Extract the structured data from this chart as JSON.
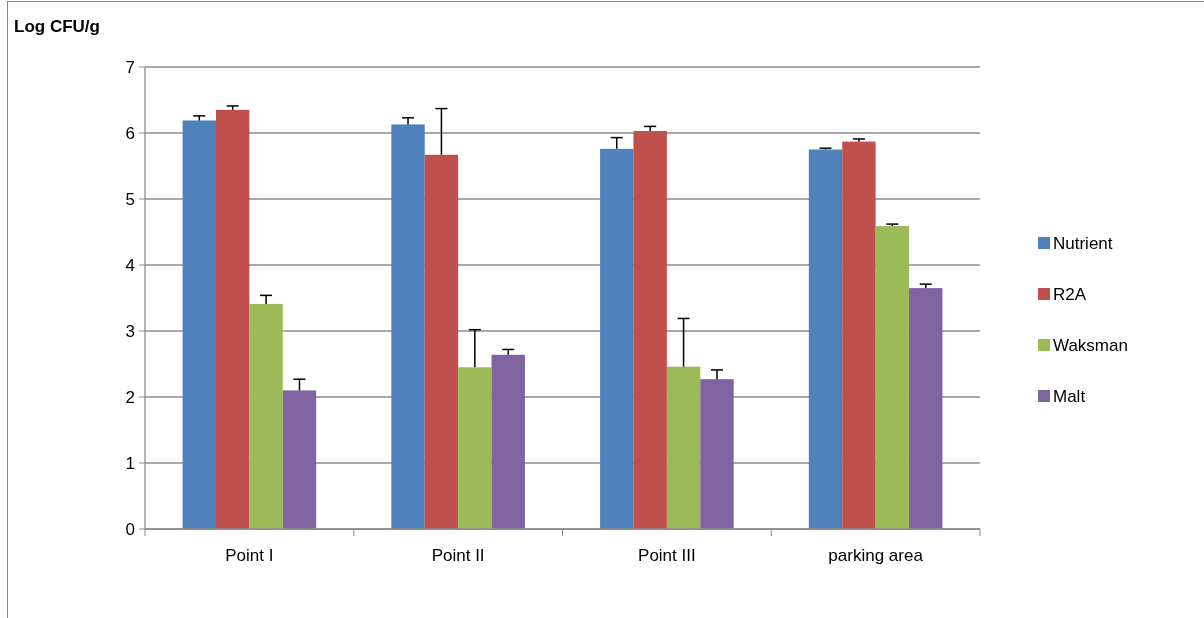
{
  "chart_data": {
    "type": "bar",
    "ylabel": "Log CFU/g",
    "categories": [
      "Point I",
      "Point II",
      "Point III",
      "parking area"
    ],
    "series": [
      {
        "name": "Nutrient",
        "color": "#4f81bd",
        "values": [
          6.19,
          6.13,
          5.76,
          5.75
        ],
        "errors": [
          [
            6.19,
            6.26
          ],
          [
            6.13,
            6.23
          ],
          [
            5.76,
            5.93
          ],
          [
            5.75,
            5.77
          ]
        ]
      },
      {
        "name": "R2A",
        "color": "#c0504d",
        "values": [
          6.35,
          5.67,
          6.03,
          5.87
        ],
        "errors": [
          [
            6.35,
            6.41
          ],
          [
            5.67,
            6.37
          ],
          [
            6.03,
            6.1
          ],
          [
            5.87,
            5.91
          ]
        ]
      },
      {
        "name": "Waksman",
        "color": "#9bbb59",
        "values": [
          3.41,
          2.45,
          2.46,
          4.59
        ],
        "errors": [
          [
            3.41,
            3.54
          ],
          [
            2.45,
            3.02
          ],
          [
            2.46,
            3.19
          ],
          [
            4.59,
            4.62
          ]
        ]
      },
      {
        "name": "Malt",
        "color": "#8064a2",
        "values": [
          2.1,
          2.64,
          2.27,
          3.65
        ],
        "errors": [
          [
            2.1,
            2.27
          ],
          [
            2.64,
            2.72
          ],
          [
            2.27,
            2.41
          ],
          [
            3.65,
            3.71
          ]
        ]
      }
    ],
    "ylim": [
      0,
      7
    ],
    "yticks": [
      0,
      1,
      2,
      3,
      4,
      5,
      6,
      7
    ],
    "grid": "y",
    "legend": "right"
  }
}
